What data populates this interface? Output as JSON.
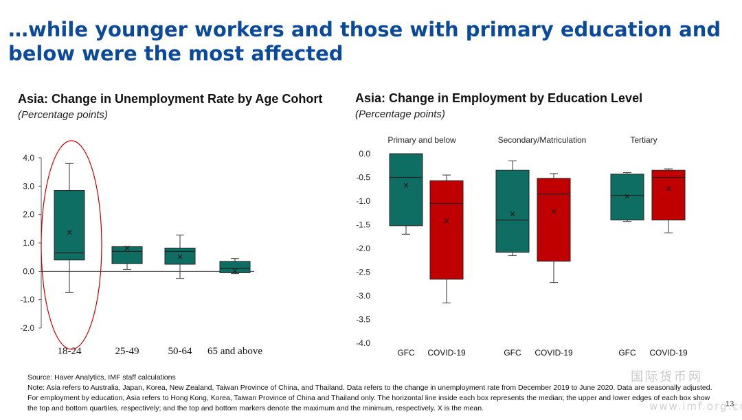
{
  "slide": {
    "title": "…while younger workers and those with primary education and below were the most affected",
    "page_number": "13",
    "watermark": "国际货币网",
    "watermark_url": "www.imf.org.cn"
  },
  "colors": {
    "title": "#0b4a9a",
    "teal": "#0f6e63",
    "red": "#c00000",
    "highlight_ellipse": "#c00000"
  },
  "left_chart": {
    "title": "Asia: Change in Unemployment Rate by Age Cohort",
    "subtitle": "(Percentage points)"
  },
  "right_chart": {
    "title": "Asia: Change in Employment by Education Level",
    "subtitle": "(Percentage points)",
    "group_labels": [
      "Primary and below",
      "Secondary/Matriculation",
      "Tertiary"
    ]
  },
  "chart_data": [
    {
      "type": "box",
      "ylim": [
        -2.0,
        4.0
      ],
      "yticks": [
        "4.0",
        "3.0",
        "2.0",
        "1.0",
        "0.0",
        "-1.0",
        "-2.0"
      ],
      "categories": [
        "18-24",
        "25-49",
        "50-64",
        "65 and above"
      ],
      "boxes": [
        {
          "min": -0.75,
          "q1": 0.4,
          "median": 0.65,
          "q3": 2.85,
          "max": 3.8,
          "mean": 1.38
        },
        {
          "min": 0.07,
          "q1": 0.27,
          "median": 0.7,
          "q3": 0.87,
          "max": 0.87,
          "mean": 0.82
        },
        {
          "min": -0.25,
          "q1": 0.25,
          "median": 0.7,
          "q3": 0.82,
          "max": 1.28,
          "mean": 0.52
        },
        {
          "min": -0.08,
          "q1": -0.05,
          "median": 0.1,
          "q3": 0.35,
          "max": 0.45,
          "mean": 0.02
        }
      ],
      "highlight": "18-24"
    },
    {
      "type": "box",
      "ylim": [
        -4.0,
        0.0
      ],
      "yticks": [
        "0.0",
        "-0.5",
        "-1.0",
        "-1.5",
        "-2.0",
        "-2.5",
        "-3.0",
        "-3.5",
        "-4.0"
      ],
      "groups": [
        "Primary and below",
        "Secondary/Matriculation",
        "Tertiary"
      ],
      "series_labels": [
        "GFC",
        "COVID-19"
      ],
      "boxes": [
        {
          "group": "Primary and below",
          "label": "GFC",
          "min": -1.7,
          "q1": -1.52,
          "median": -0.5,
          "q3": 0.0,
          "max": 0.0,
          "mean": -0.67
        },
        {
          "group": "Primary and below",
          "label": "COVID-19",
          "min": -3.15,
          "q1": -2.65,
          "median": -1.05,
          "q3": -0.57,
          "max": -0.45,
          "mean": -1.42
        },
        {
          "group": "Secondary/Matriculation",
          "label": "GFC",
          "min": -2.15,
          "q1": -2.08,
          "median": -1.4,
          "q3": -0.35,
          "max": -0.15,
          "mean": -1.27
        },
        {
          "group": "Secondary/Matriculation",
          "label": "COVID-19",
          "min": -2.72,
          "q1": -2.27,
          "median": -0.85,
          "q3": -0.52,
          "max": -0.42,
          "mean": -1.22
        },
        {
          "group": "Tertiary",
          "label": "GFC",
          "min": -1.43,
          "q1": -1.4,
          "median": -0.88,
          "q3": -0.43,
          "max": -0.4,
          "mean": -0.9
        },
        {
          "group": "Tertiary",
          "label": "COVID-19",
          "min": -1.67,
          "q1": -1.4,
          "median": -0.5,
          "q3": -0.35,
          "max": -0.32,
          "mean": -0.74
        }
      ]
    }
  ],
  "notes": [
    "Source: Haver Analytics, IMF staff calculations",
    "Note: Asia refers to Australia, Japan, Korea, New Zealand, Taiwan Province of China, and Thailand. Data refers to the change in unemployment rate from December 2019 to June 2020. Data are seasonally adjusted.",
    "For employment by education, Asia refers to Hong Kong, Korea, Taiwan Province of China and Thailand only. The horizontal line inside each box represents the median; the upper and lower edges of each box show",
    "the top and bottom quartiles, respectively; and the top and bottom markers denote the maximum and the minimum, respectively. X is the mean."
  ]
}
